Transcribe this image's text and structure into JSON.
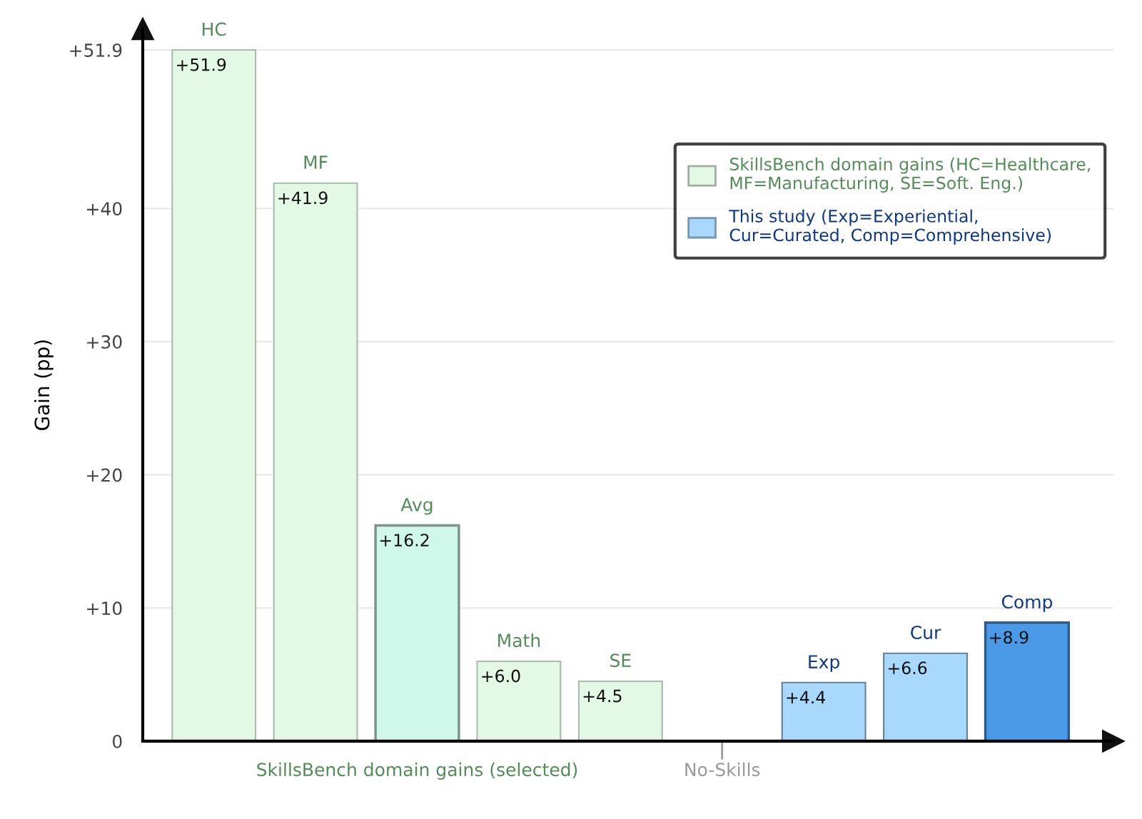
{
  "chart_data": {
    "type": "bar",
    "ylabel": "Gain (pp)",
    "categories": [
      "HC",
      "MF",
      "Avg",
      "Math",
      "SE",
      "No-Skills",
      "Exp",
      "Cur",
      "Comp"
    ],
    "series": [
      {
        "name": "SkillsBench domain gains (HC=Healthcare, MF=Manufacturing, SE=Soft. Eng.)",
        "color": "#e3f8e5",
        "colors": [
          "#e3f8e5",
          "#e3f8e5",
          "#cff8ea",
          "#e3f8e5",
          "#e3f8e5",
          null,
          null,
          null,
          null
        ],
        "values": [
          51.9,
          41.9,
          16.2,
          6.0,
          4.5,
          null,
          null,
          null,
          null
        ],
        "value_labels": [
          "+51.9",
          "+41.9",
          "+16.2",
          "+6.0",
          "+4.5",
          null,
          null,
          null,
          null
        ]
      },
      {
        "name": "This study (Exp=Experiential, Cur=Curated, Comp=Comprehensive)",
        "color": "#a8d8fc",
        "colors": [
          null,
          null,
          null,
          null,
          null,
          null,
          "#a8d8fc",
          "#a8d8fc",
          "#4a9ae8"
        ],
        "values": [
          null,
          null,
          null,
          null,
          null,
          null,
          4.4,
          6.6,
          8.9
        ],
        "value_labels": [
          null,
          null,
          null,
          null,
          null,
          null,
          "+4.4",
          "+6.6",
          "+8.9"
        ]
      }
    ],
    "ylim": [
      0,
      53.5
    ],
    "yticks": [
      0,
      {
        "value": 10,
        "label": "+10"
      },
      {
        "value": 20,
        "label": "+20"
      },
      {
        "value": 30,
        "label": "+30"
      },
      {
        "value": 40,
        "label": "+40"
      },
      {
        "value": 51.9,
        "label": "+51.9"
      }
    ],
    "grid": "y",
    "legend": "top right",
    "annotations": [
      "SkillsBench domain gains (selected)"
    ]
  }
}
